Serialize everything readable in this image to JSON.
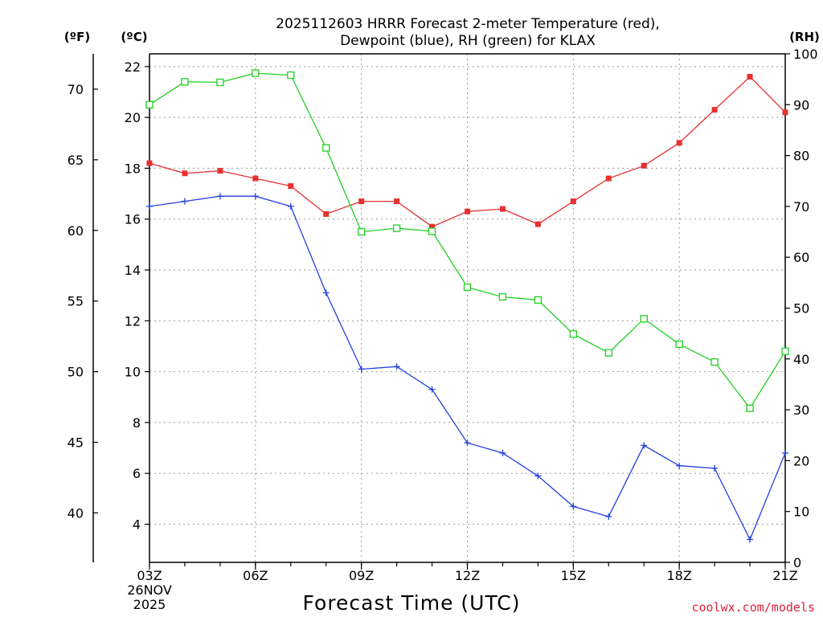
{
  "chart_data": {
    "type": "line",
    "title_line1": "2025112603 HRRR Forecast 2-meter Temperature (red),",
    "title_line2": "Dewpoint (blue), RH (green) for KLAX",
    "x_axis_title": "Forecast Time (UTC)",
    "date_label_line1": "26NOV",
    "date_label_line2": "2025",
    "credit": "coolwx.com/models",
    "unit_left_f": "(ºF)",
    "unit_left_c": "(ºC)",
    "unit_right": "(RH)",
    "x_hours": [
      3,
      4,
      5,
      6,
      7,
      8,
      9,
      10,
      11,
      12,
      13,
      14,
      15,
      16,
      17,
      18,
      19,
      20,
      21
    ],
    "x_range": [
      3,
      21
    ],
    "x_ticks": [
      {
        "hour": 3,
        "label": "03Z"
      },
      {
        "hour": 6,
        "label": "06Z"
      },
      {
        "hour": 9,
        "label": "09Z"
      },
      {
        "hour": 12,
        "label": "12Z"
      },
      {
        "hour": 15,
        "label": "15Z"
      },
      {
        "hour": 18,
        "label": "18Z"
      },
      {
        "hour": 21,
        "label": "21Z"
      }
    ],
    "celsius_axis": {
      "range": [
        2.5,
        22.5
      ],
      "ticks": [
        4,
        6,
        8,
        10,
        12,
        14,
        16,
        18,
        20,
        22
      ],
      "labels": [
        "4",
        "6",
        "8",
        "10",
        "12",
        "14",
        "16",
        "18",
        "20",
        "22"
      ]
    },
    "fahrenheit_axis": {
      "ticks": [
        40,
        45,
        50,
        55,
        60,
        65,
        70
      ],
      "labels": [
        "40",
        "45",
        "50",
        "55",
        "60",
        "65",
        "70"
      ]
    },
    "rh_axis": {
      "range": [
        0,
        100
      ],
      "ticks": [
        0,
        10,
        20,
        30,
        40,
        50,
        60,
        70,
        80,
        90,
        100
      ],
      "labels": [
        "0",
        "10",
        "20",
        "30",
        "40",
        "50",
        "60",
        "70",
        "80",
        "90",
        "100"
      ]
    },
    "series": [
      {
        "name": "Temperature",
        "units": "C",
        "axis": "celsius",
        "color": "#e83030",
        "marker": "filled-square",
        "values": [
          18.2,
          17.8,
          17.9,
          17.6,
          17.3,
          16.2,
          16.7,
          16.7,
          15.7,
          16.3,
          16.4,
          15.8,
          16.7,
          17.6,
          18.1,
          19.0,
          20.3,
          21.6,
          20.2
        ]
      },
      {
        "name": "Dewpoint",
        "units": "C",
        "axis": "celsius",
        "color": "#2040e0",
        "marker": "plus",
        "values": [
          16.5,
          16.7,
          16.9,
          16.9,
          16.5,
          13.1,
          10.1,
          10.2,
          9.3,
          7.2,
          6.8,
          5.9,
          4.7,
          4.3,
          7.1,
          6.3,
          6.2,
          3.4,
          6.8
        ]
      },
      {
        "name": "RH",
        "units": "%",
        "axis": "rh",
        "color": "#20d020",
        "marker": "open-square",
        "values": [
          90,
          94.5,
          94.4,
          96.2,
          95.8,
          81.5,
          65,
          65.7,
          65.1,
          54.1,
          52.2,
          51.6,
          44.9,
          41.2,
          47.9,
          42.9,
          39.4,
          30.3,
          41.5
        ]
      }
    ]
  }
}
